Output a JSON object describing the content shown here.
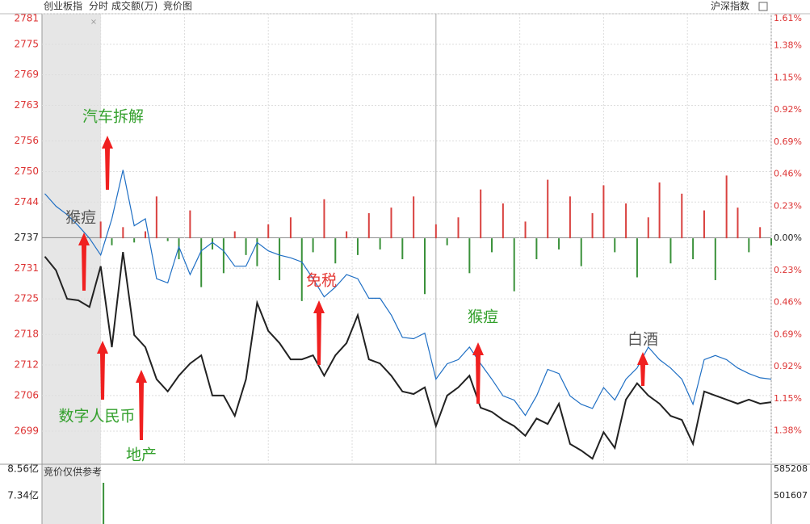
{
  "header": {
    "tabs": [
      "分时",
      "成交额(万)",
      "竞价图"
    ]
  },
  "chart_data": [
    {
      "type": "line",
      "x": [
        -20,
        -16,
        -12,
        -8,
        -4,
        0,
        4,
        8,
        12,
        16,
        20,
        24,
        28,
        32,
        36,
        40,
        44,
        48,
        52,
        56,
        60,
        64,
        68,
        72,
        76,
        80,
        84,
        88,
        92,
        96,
        100,
        104,
        108,
        112,
        116,
        120,
        124,
        128,
        132,
        136,
        140,
        144,
        148,
        152,
        156,
        160,
        164,
        168,
        172,
        176,
        180,
        184,
        188,
        192,
        196,
        200,
        204,
        208,
        212,
        216,
        220,
        224,
        228,
        232,
        236,
        240
      ],
      "xlim": [
        -21,
        240
      ],
      "xticks": [
        0,
        30,
        60,
        90,
        120,
        150,
        180,
        210,
        240
      ],
      "ylim": [
        2692.5,
        2781
      ],
      "yticks": [
        2781,
        2775,
        2769,
        2763,
        2756,
        2750,
        2744,
        2737,
        2731,
        2725,
        2718,
        2712,
        2706,
        2699
      ],
      "y2lim": [
        -1.62,
        1.61
      ],
      "y2ticks": [
        {
          "value": 1.61,
          "label": "1.61%"
        },
        {
          "value": 1.38,
          "label": "1.38%"
        },
        {
          "value": 1.15,
          "label": "1.15%"
        },
        {
          "value": 0.92,
          "label": "0.92%"
        },
        {
          "value": 0.69,
          "label": "0.69%"
        },
        {
          "value": 0.46,
          "label": "0.46%"
        },
        {
          "value": 0.23,
          "label": "0.23%"
        },
        {
          "value": 0,
          "label": "0.00%"
        },
        {
          "value": -0.23,
          "label": "0.23%"
        },
        {
          "value": -0.46,
          "label": "0.46%"
        },
        {
          "value": -0.69,
          "label": "0.69%"
        },
        {
          "value": -0.92,
          "label": "0.92%"
        },
        {
          "value": -1.15,
          "label": "1.15%"
        },
        {
          "value": -1.38,
          "label": "1.38%"
        }
      ],
      "grid": true,
      "series": [
        {
          "name": "创业板指",
          "color": "#222222",
          "values": [
            2733.3,
            2730.6,
            2725.0,
            2724.7,
            2723.4,
            2731.4,
            2715.5,
            2734.2,
            2717.9,
            2715.5,
            2709.2,
            2706.8,
            2709.9,
            2712.3,
            2713.9,
            2706.0,
            2706.0,
            2702.0,
            2709.2,
            2724.2,
            2718.7,
            2716.3,
            2713.1,
            2713.1,
            2713.9,
            2709.9,
            2713.9,
            2716.3,
            2721.8,
            2713.1,
            2712.3,
            2709.9,
            2706.8,
            2706.3,
            2707.6,
            2700.0,
            2706.0,
            2707.6,
            2709.9,
            2703.6,
            2702.8,
            2701.2,
            2700.0,
            2698.1,
            2701.5,
            2700.4,
            2704.4,
            2696.5,
            2695.2,
            2693.6,
            2698.8,
            2695.7,
            2705.2,
            2708.4,
            2706.0,
            2704.4,
            2702.0,
            2701.2,
            2696.5,
            2706.8,
            2706.0,
            2705.2,
            2704.4,
            2705.2,
            2704.4,
            2704.7
          ]
        },
        {
          "name": "沪深指数",
          "color": "#1f6fc4",
          "axis": "y2",
          "values": [
            0.32,
            0.23,
            0.17,
            0.09,
            0.0,
            -0.12,
            0.14,
            0.49,
            0.09,
            0.14,
            -0.29,
            -0.32,
            -0.06,
            -0.26,
            -0.09,
            -0.03,
            -0.09,
            -0.2,
            -0.2,
            -0.03,
            -0.09,
            -0.12,
            -0.14,
            -0.17,
            -0.29,
            -0.42,
            -0.35,
            -0.26,
            -0.29,
            -0.43,
            -0.43,
            -0.55,
            -0.71,
            -0.72,
            -0.68,
            -1.01,
            -0.9,
            -0.87,
            -0.78,
            -0.9,
            -1.01,
            -1.13,
            -1.16,
            -1.27,
            -1.13,
            -0.94,
            -0.97,
            -1.13,
            -1.19,
            -1.22,
            -1.07,
            -1.16,
            -1.01,
            -0.93,
            -0.78,
            -0.87,
            -0.93,
            -1.01,
            -1.19,
            -0.87,
            -0.84,
            -0.87,
            -0.93,
            -0.97,
            -1.0,
            -1.01
          ]
        }
      ],
      "bars": {
        "axis": "y2",
        "up_color": "#d9413f",
        "down_color": "#3a913a",
        "x": [
          0,
          4,
          8,
          12,
          16,
          20,
          24,
          28,
          32,
          36,
          40,
          44,
          48,
          52,
          56,
          60,
          64,
          68,
          72,
          76,
          80,
          84,
          88,
          92,
          96,
          100,
          104,
          108,
          112,
          116,
          120,
          124,
          128,
          132,
          136,
          140,
          144,
          148,
          152,
          156,
          160,
          164,
          168,
          172,
          176,
          180,
          184,
          188,
          192,
          196,
          200,
          204,
          208,
          212,
          216,
          220,
          224,
          228,
          232,
          236,
          240
        ],
        "values": [
          0.12,
          -0.05,
          0.08,
          -0.03,
          0.05,
          0.3,
          -0.02,
          -0.15,
          0.2,
          -0.35,
          -0.08,
          -0.25,
          0.05,
          -0.12,
          -0.2,
          0.1,
          -0.3,
          0.15,
          -0.45,
          -0.1,
          0.28,
          -0.18,
          0.05,
          -0.12,
          0.18,
          -0.08,
          0.22,
          -0.15,
          0.3,
          -0.4,
          0.1,
          -0.05,
          0.15,
          -0.25,
          0.35,
          -0.1,
          0.25,
          -0.38,
          0.12,
          -0.15,
          0.42,
          -0.08,
          0.3,
          -0.2,
          0.18,
          0.38,
          -0.1,
          0.25,
          -0.28,
          0.15,
          0.4,
          -0.18,
          0.32,
          -0.15,
          0.2,
          -0.3,
          0.45,
          0.22,
          -0.1,
          0.08,
          -0.05
        ]
      },
      "annotations": [
        {
          "text": "汽车拆解",
          "color": "#33a02c"
        },
        {
          "text": "猴痘",
          "color": "#555555"
        },
        {
          "text": "数字人民币",
          "color": "#33a02c"
        },
        {
          "text": "地产",
          "color": "#33a02c"
        },
        {
          "text": "免税",
          "color": "#e53935"
        },
        {
          "text": "猴痘",
          "color": "#33a02c"
        },
        {
          "text": "白酒",
          "color": "#555555"
        }
      ],
      "arrow_color": "#f02020"
    },
    {
      "type": "bar",
      "title": "竞价仅供参考",
      "x": [
        1
      ],
      "values": [
        7.84
      ],
      "color": "#3a913a",
      "xlim": [
        -21,
        240
      ],
      "ylim": [
        6.24,
        8.56
      ],
      "yticks": [
        {
          "value": 8.56,
          "label": "8.56亿"
        },
        {
          "value": 7.34,
          "label": "7.34亿"
        }
      ],
      "y2lim": [
        426581,
        585208
      ],
      "y2ticks": [
        585208,
        501607
      ]
    }
  ]
}
